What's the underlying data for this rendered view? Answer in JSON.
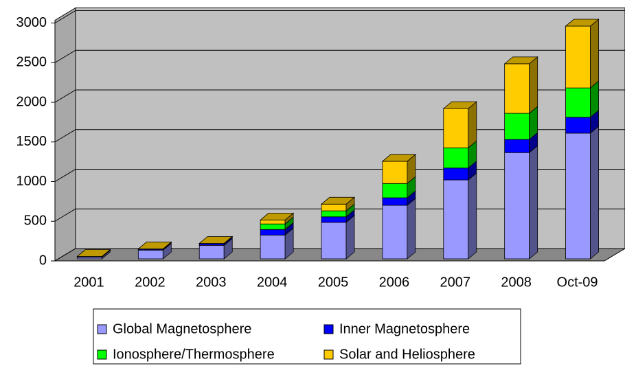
{
  "chart_data": {
    "type": "bar3d_stacked",
    "categories": [
      "2001",
      "2002",
      "2003",
      "2004",
      "2005",
      "2006",
      "2007",
      "2008",
      "Oct-09"
    ],
    "series": [
      {
        "name": "Global Magnetosphere",
        "color": "#9999ff",
        "values": [
          20,
          110,
          170,
          300,
          460,
          675,
          995,
          1340,
          1585
        ]
      },
      {
        "name": "Inner Magnetosphere",
        "color": "#0000ff",
        "values": [
          5,
          10,
          20,
          70,
          70,
          95,
          150,
          165,
          200
        ]
      },
      {
        "name": "Ionosphere/Thermosphere",
        "color": "#00ff00",
        "values": [
          0,
          0,
          0,
          70,
          75,
          180,
          255,
          330,
          370
        ]
      },
      {
        "name": "Solar and Heliosphere",
        "color": "#ffcc00",
        "values": [
          5,
          5,
          5,
          50,
          85,
          280,
          495,
          625,
          780
        ]
      }
    ],
    "ylim": [
      0,
      3000
    ],
    "yticks": [
      0,
      500,
      1000,
      1500,
      2000,
      2500,
      3000
    ],
    "grid": true,
    "legend": "bottom"
  }
}
